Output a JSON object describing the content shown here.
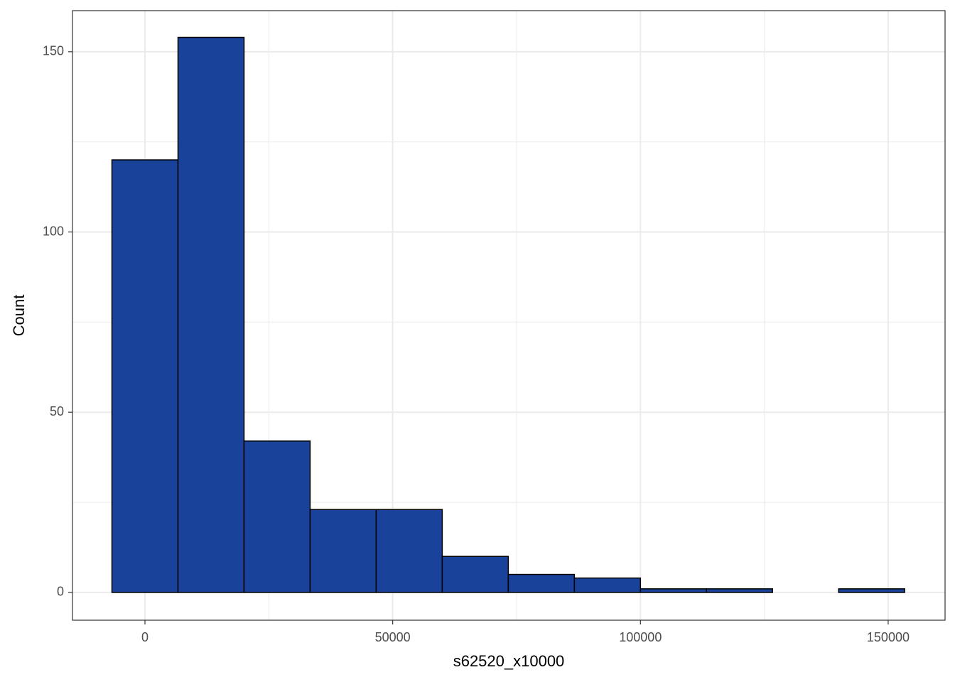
{
  "chart_data": {
    "type": "histogram",
    "x_label": "s62520_x10000",
    "y_label": "Count",
    "bins": [
      -6666.67,
      6666.67,
      20000,
      33333.33,
      46666.67,
      60000,
      73333.33,
      86666.67,
      100000,
      113333.33,
      126666.67,
      140000,
      153333.33
    ],
    "values": [
      120,
      154,
      42,
      23,
      23,
      10,
      5,
      4,
      1,
      1,
      0,
      1
    ],
    "color": "#19439a",
    "edge_color": "#000000",
    "xlim": [
      -14630,
      161480
    ],
    "xticks": [
      0,
      50000,
      100000,
      150000
    ],
    "ylim": [
      -7.7,
      161.4
    ],
    "yticks": [
      0,
      50,
      100,
      150
    ],
    "grid": true,
    "minor_grid": true
  }
}
